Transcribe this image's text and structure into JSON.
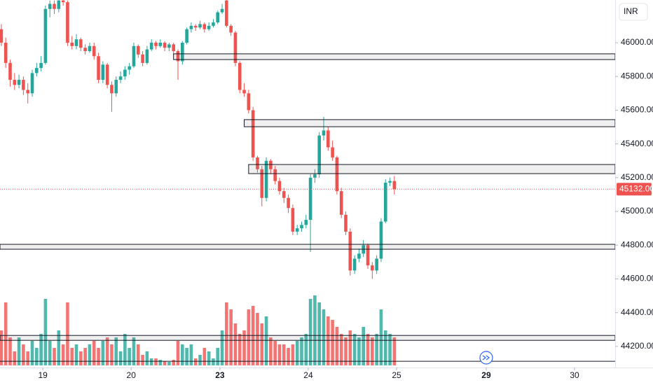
{
  "chart_data": {
    "type": "candlestick",
    "currency": "INR",
    "open": [
      46080,
      46000,
      45880,
      45780,
      45750,
      45780,
      45720,
      45700,
      45820,
      45850,
      45880,
      46200,
      46230,
      46200,
      46250,
      46240,
      46000,
      45980,
      46020,
      45970,
      45950,
      45980,
      45920,
      45780,
      45870,
      45750,
      45700,
      45780,
      45800,
      45840,
      45860,
      45980,
      45930,
      45880,
      45960,
      46000,
      45980,
      46000,
      45970,
      45990,
      45950,
      45890,
      46000,
      46080,
      46100,
      46090,
      46110,
      46080,
      46100,
      46120,
      46180,
      46250,
      46100,
      46060,
      45880,
      45720,
      45700,
      45600,
      45320,
      45250,
      45080,
      45300,
      45250,
      45180,
      45120,
      45080,
      45020,
      44880,
      44900,
      44920,
      44950,
      45200,
      45220,
      45450,
      45480,
      45380,
      45320,
      45120,
      44980,
      44880,
      44650,
      44720,
      44750,
      44800,
      44680,
      44650,
      44720,
      44940,
      45170,
      45180
    ],
    "high": [
      46110,
      46030,
      45900,
      45820,
      45810,
      45800,
      45760,
      45840,
      45880,
      45920,
      46220,
      46250,
      46250,
      46260,
      46260,
      46250,
      46040,
      46050,
      46030,
      45990,
      46000,
      46000,
      45940,
      45890,
      45880,
      45770,
      45800,
      45830,
      45860,
      45880,
      46000,
      45990,
      45950,
      45980,
      46020,
      46010,
      46020,
      46010,
      46000,
      46000,
      45960,
      46010,
      46090,
      46120,
      46110,
      46130,
      46120,
      46120,
      46140,
      46190,
      46230,
      46260,
      46110,
      46070,
      45890,
      45760,
      45720,
      45620,
      45330,
      45270,
      45320,
      45310,
      45270,
      45200,
      45140,
      45100,
      45040,
      44920,
      44940,
      44980,
      45220,
      45250,
      45470,
      45560,
      45500,
      45420,
      45330,
      45140,
      45000,
      44900,
      44740,
      44780,
      44830,
      44810,
      44700,
      44740,
      44960,
      45190,
      45200,
      45210
    ],
    "low": [
      45980,
      45850,
      45740,
      45720,
      45730,
      45690,
      45640,
      45680,
      45800,
      45830,
      45870,
      46150,
      46170,
      46180,
      46220,
      45980,
      45960,
      45960,
      45950,
      45930,
      45940,
      45900,
      45760,
      45760,
      45730,
      45590,
      45680,
      45760,
      45780,
      45810,
      45850,
      45910,
      45860,
      45870,
      45950,
      45960,
      45970,
      45950,
      45950,
      45930,
      45780,
      45870,
      45990,
      46060,
      46070,
      46080,
      46060,
      46070,
      46090,
      46110,
      46170,
      46090,
      46040,
      45860,
      45700,
      45680,
      45580,
      45300,
      45230,
      45030,
      45060,
      45220,
      45160,
      45100,
      45050,
      44990,
      44860,
      44860,
      44880,
      44900,
      44760,
      45170,
      45200,
      45420,
      45360,
      45300,
      45100,
      44960,
      44860,
      44620,
      44630,
      44700,
      44730,
      44660,
      44600,
      44630,
      44700,
      44930,
      45150,
      45100
    ],
    "close": [
      46000,
      45880,
      45780,
      45750,
      45780,
      45720,
      45700,
      45820,
      45850,
      45880,
      46200,
      46230,
      46200,
      46250,
      46240,
      46000,
      45980,
      46020,
      45970,
      45950,
      45980,
      45920,
      45780,
      45870,
      45750,
      45700,
      45780,
      45800,
      45840,
      45860,
      45980,
      45930,
      45880,
      45960,
      46000,
      45980,
      46000,
      45970,
      45990,
      45950,
      45890,
      46000,
      46080,
      46100,
      46090,
      46110,
      46080,
      46100,
      46120,
      46180,
      46200,
      46100,
      46060,
      45880,
      45720,
      45700,
      45600,
      45320,
      45250,
      45080,
      45300,
      45250,
      45180,
      45120,
      45080,
      45020,
      44880,
      44900,
      44920,
      44950,
      45200,
      45220,
      45450,
      45480,
      45380,
      45320,
      45120,
      44980,
      44880,
      44650,
      44720,
      44750,
      44800,
      44680,
      44650,
      44720,
      44940,
      45170,
      45180,
      45132
    ],
    "volume": [
      50,
      90,
      40,
      20,
      40,
      30,
      20,
      35,
      25,
      45,
      95,
      35,
      25,
      50,
      30,
      90,
      25,
      30,
      20,
      25,
      30,
      35,
      25,
      35,
      40,
      30,
      40,
      20,
      45,
      25,
      40,
      30,
      15,
      20,
      10,
      10,
      8,
      6,
      5,
      8,
      35,
      30,
      25,
      30,
      10,
      15,
      25,
      20,
      10,
      25,
      50,
      90,
      80,
      60,
      45,
      50,
      80,
      85,
      75,
      60,
      70,
      40,
      35,
      30,
      30,
      25,
      30,
      35,
      40,
      45,
      95,
      100,
      90,
      80,
      70,
      65,
      55,
      45,
      40,
      50,
      45,
      40,
      55,
      45,
      40,
      45,
      80,
      50,
      45,
      40
    ],
    "volume_lim": [
      0,
      100
    ],
    "up_color": "#26a69a",
    "down_color": "#ef5350",
    "xlim": [
      -0.3,
      139
    ],
    "xticks": [
      {
        "value": 9.4,
        "label": "19"
      },
      {
        "value": 29.4,
        "label": "20"
      },
      {
        "value": 49.5,
        "label": "23",
        "bold": true
      },
      {
        "value": 69.5,
        "label": "24"
      },
      {
        "value": 89.5,
        "label": "25"
      },
      {
        "value": 109.8,
        "label": "29",
        "bold": true
      },
      {
        "value": 129.8,
        "label": "30"
      }
    ],
    "ylim": [
      44075,
      46253
    ],
    "yticks": [
      {
        "value": 44200,
        "label": "44200.00"
      },
      {
        "value": 44400,
        "label": "44400.00"
      },
      {
        "value": 44600,
        "label": "44600.00"
      },
      {
        "value": 44800,
        "label": "44800.00"
      },
      {
        "value": 45000,
        "label": "45000.00"
      },
      {
        "value": 45200,
        "label": "45200.00"
      },
      {
        "value": 45400,
        "label": "45400.00"
      },
      {
        "value": 45600,
        "label": "45600.00"
      },
      {
        "value": 45800,
        "label": "45800.00"
      },
      {
        "value": 46000,
        "label": "46000.00"
      }
    ],
    "last_price": {
      "value": 45132,
      "label": "45132.00"
    },
    "zones": [
      {
        "from": 39,
        "top": 45934,
        "bottom": 45900
      },
      {
        "from": 55,
        "top": 45544,
        "bottom": 45502
      },
      {
        "from": 56,
        "top": 45278,
        "bottom": 45224
      },
      {
        "from": -0.3,
        "top": 44805,
        "bottom": 44776
      },
      {
        "from": -0.3,
        "top": 44265,
        "bottom": 44236
      }
    ],
    "levels": [
      44112
    ]
  }
}
